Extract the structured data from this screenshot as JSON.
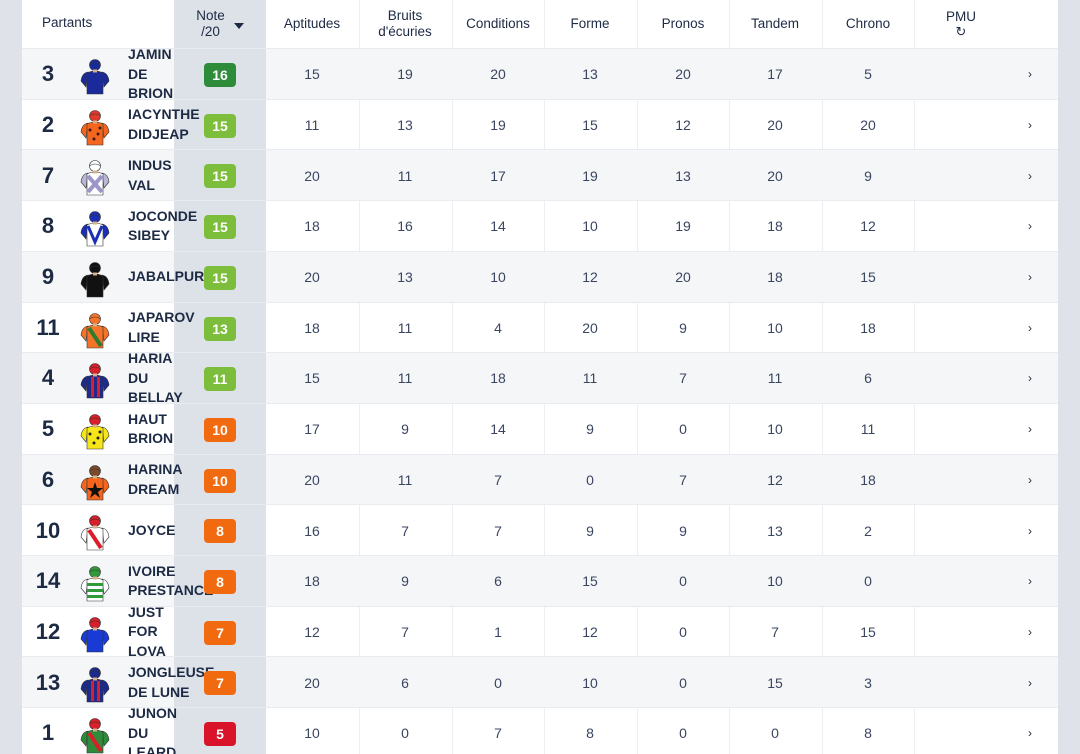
{
  "header": {
    "partants": "Partants",
    "note_line1": "Note",
    "note_line2": "/20",
    "cols": [
      "Aptitudes",
      "Bruits d'écuries",
      "Conditions",
      "Forme",
      "Pronos",
      "Tandem",
      "Chrono"
    ],
    "pmu": "PMU",
    "refresh_icon": "↻"
  },
  "colors": {
    "green_dark": "#2e8b3a",
    "green": "#7cbd3c",
    "orange": "#f26a10",
    "red": "#d9132a"
  },
  "rows": [
    {
      "num": "3",
      "name": [
        "JAMIN",
        "DE",
        "BRION"
      ],
      "note": "16",
      "level": "green_dark",
      "silk": {
        "body": "#1a2a9a",
        "sleeve": "#1a2a9a",
        "cap": "#1a2a9a",
        "pattern": "plain",
        "accent": "#ffffff"
      },
      "values": [
        "15",
        "19",
        "20",
        "13",
        "20",
        "17",
        "5"
      ]
    },
    {
      "num": "2",
      "name": [
        "IACYNTHE",
        "DIDJEAP"
      ],
      "note": "15",
      "level": "green",
      "silk": {
        "body": "#f4651e",
        "sleeve": "#f4651e",
        "cap": "#e23a2a",
        "pattern": "dots",
        "accent": "#3a1a1a"
      },
      "values": [
        "11",
        "13",
        "19",
        "15",
        "12",
        "20",
        "20"
      ]
    },
    {
      "num": "7",
      "name": [
        "INDUS",
        "VAL"
      ],
      "note": "15",
      "level": "green",
      "silk": {
        "body": "#ffffff",
        "sleeve": "#b9b6d8",
        "cap": "#ffffff",
        "pattern": "cross",
        "accent": "#9c97c9"
      },
      "values": [
        "20",
        "11",
        "17",
        "19",
        "13",
        "20",
        "9"
      ]
    },
    {
      "num": "8",
      "name": [
        "JOCONDE",
        "SIBEY"
      ],
      "note": "15",
      "level": "green",
      "silk": {
        "body": "#ffffff",
        "sleeve": "#1a2fb5",
        "cap": "#1a2fb5",
        "pattern": "vee",
        "accent": "#1a2fb5"
      },
      "values": [
        "18",
        "16",
        "14",
        "10",
        "19",
        "18",
        "12"
      ]
    },
    {
      "num": "9",
      "name": [
        "JABALPUR"
      ],
      "note": "15",
      "level": "green",
      "silk": {
        "body": "#111111",
        "sleeve": "#111111",
        "cap": "#111111",
        "pattern": "plain",
        "accent": "#333333"
      },
      "values": [
        "20",
        "13",
        "10",
        "12",
        "20",
        "18",
        "15"
      ]
    },
    {
      "num": "11",
      "name": [
        "JAPAROV",
        "LIRE"
      ],
      "note": "13",
      "level": "green",
      "silk": {
        "body": "#f4742a",
        "sleeve": "#f4742a",
        "cap": "#f4742a",
        "pattern": "sash",
        "accent": "#2f7a2f"
      },
      "values": [
        "18",
        "11",
        "4",
        "20",
        "9",
        "10",
        "18"
      ]
    },
    {
      "num": "4",
      "name": [
        "HARIA",
        "DU",
        "BELLAY"
      ],
      "note": "11",
      "level": "green",
      "silk": {
        "body": "#1b2a8c",
        "sleeve": "#1b2a8c",
        "cap": "#d81f2a",
        "pattern": "stripes",
        "accent": "#d81f2a"
      },
      "values": [
        "15",
        "11",
        "18",
        "11",
        "7",
        "11",
        "6"
      ]
    },
    {
      "num": "5",
      "name": [
        "HAUT",
        "BRION"
      ],
      "note": "10",
      "level": "orange",
      "silk": {
        "body": "#f6e619",
        "sleeve": "#f6e619",
        "cap": "#d81f2a",
        "pattern": "dots",
        "accent": "#222222"
      },
      "values": [
        "17",
        "9",
        "14",
        "9",
        "0",
        "10",
        "11"
      ]
    },
    {
      "num": "6",
      "name": [
        "HARINA",
        "DREAM"
      ],
      "note": "10",
      "level": "orange",
      "silk": {
        "body": "#f4651e",
        "sleeve": "#f4651e",
        "cap": "#7a4a2a",
        "pattern": "star",
        "accent": "#111111"
      },
      "values": [
        "20",
        "11",
        "7",
        "0",
        "7",
        "12",
        "18"
      ]
    },
    {
      "num": "10",
      "name": [
        "JOYCE"
      ],
      "note": "8",
      "level": "orange",
      "silk": {
        "body": "#ffffff",
        "sleeve": "#ffffff",
        "cap": "#d81f2a",
        "pattern": "sash",
        "accent": "#d81f2a"
      },
      "values": [
        "16",
        "7",
        "7",
        "9",
        "9",
        "13",
        "2"
      ]
    },
    {
      "num": "14",
      "name": [
        "IVOIRE",
        "PRESTANCE"
      ],
      "note": "8",
      "level": "orange",
      "silk": {
        "body": "#ffffff",
        "sleeve": "#ffffff",
        "cap": "#2e9a3a",
        "pattern": "hoops",
        "accent": "#2e9a3a"
      },
      "values": [
        "18",
        "9",
        "6",
        "15",
        "0",
        "10",
        "0"
      ]
    },
    {
      "num": "12",
      "name": [
        "JUST",
        "FOR",
        "LOVA"
      ],
      "note": "7",
      "level": "orange",
      "silk": {
        "body": "#1a3ad6",
        "sleeve": "#1a3ad6",
        "cap": "#d81f2a",
        "pattern": "plain",
        "accent": "#ffffff"
      },
      "values": [
        "12",
        "7",
        "1",
        "12",
        "0",
        "7",
        "15"
      ]
    },
    {
      "num": "13",
      "name": [
        "JONGLEUSE",
        "DE LUNE"
      ],
      "note": "7",
      "level": "orange",
      "silk": {
        "body": "#1b2a8c",
        "sleeve": "#1b2a8c",
        "cap": "#1b2a8c",
        "pattern": "stripes",
        "accent": "#d81f2a"
      },
      "values": [
        "20",
        "6",
        "0",
        "10",
        "0",
        "15",
        "3"
      ]
    },
    {
      "num": "1",
      "name": [
        "JUNON",
        "DU",
        "LEARD"
      ],
      "note": "5",
      "level": "red",
      "silk": {
        "body": "#2e8b3a",
        "sleeve": "#2e8b3a",
        "cap": "#d81f2a",
        "pattern": "sash",
        "accent": "#d81f2a"
      },
      "values": [
        "10",
        "0",
        "7",
        "8",
        "0",
        "0",
        "8"
      ]
    }
  ],
  "row_action_icon": "›"
}
